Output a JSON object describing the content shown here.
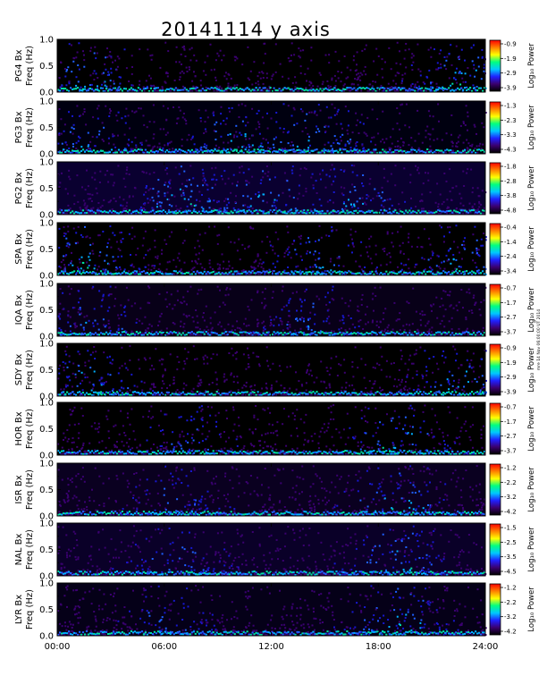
{
  "chart_data": {
    "type": "heatmap",
    "title": "20141114 y axis",
    "xlim_hours": [
      0,
      24
    ],
    "x_tick_labels": [
      "00:00",
      "06:00",
      "12:00",
      "18:00",
      "24:00"
    ],
    "freq_ylim_hz": [
      0,
      1.0
    ],
    "freq_tick_labels": [
      "0.0",
      "0.5",
      "1.0"
    ],
    "colorbar_label": "Log₁₀ Power",
    "colormap": [
      "#000000",
      "#3a006e",
      "#2020ff",
      "#00c8ff",
      "#00ff80",
      "#ffff00",
      "#ff8000",
      "#ff0000"
    ],
    "side_stamp": "mre 14 Nov 06:00:00 UT 2014",
    "panels": [
      {
        "station": "PG4",
        "ylabel_top": "PG4 Bx",
        "ylabel_bottom": "Freq (Hz)",
        "cbar_ticks": [
          "-0.9",
          "-1.9",
          "-2.9",
          "-3.9"
        ],
        "log_power_range": [
          -3.9,
          -0.9
        ]
      },
      {
        "station": "PG3",
        "ylabel_top": "PG3 Bx",
        "ylabel_bottom": "Freq (Hz)",
        "cbar_ticks": [
          "-1.3",
          "-2.3",
          "-3.3",
          "-4.3"
        ],
        "log_power_range": [
          -4.3,
          -1.3
        ]
      },
      {
        "station": "PG2",
        "ylabel_top": "PG2 Bx",
        "ylabel_bottom": "Freq (Hz)",
        "cbar_ticks": [
          "-1.8",
          "-2.8",
          "-3.8",
          "-4.8"
        ],
        "log_power_range": [
          -4.8,
          -1.8
        ]
      },
      {
        "station": "SPA",
        "ylabel_top": "SPA Bx",
        "ylabel_bottom": "Freq (Hz)",
        "cbar_ticks": [
          "-0.4",
          "-1.4",
          "-2.4",
          "-3.4"
        ],
        "log_power_range": [
          -3.4,
          -0.4
        ]
      },
      {
        "station": "IQA",
        "ylabel_top": "IQA Bx",
        "ylabel_bottom": "Freq (Hz)",
        "cbar_ticks": [
          "-0.7",
          "-1.7",
          "-2.7",
          "-3.7"
        ],
        "log_power_range": [
          -3.7,
          -0.7
        ]
      },
      {
        "station": "SDY",
        "ylabel_top": "SDY Bx",
        "ylabel_bottom": "Freq (Hz)",
        "cbar_ticks": [
          "-0.9",
          "-1.9",
          "-2.9",
          "-3.9"
        ],
        "log_power_range": [
          -3.9,
          -0.9
        ]
      },
      {
        "station": "HOR",
        "ylabel_top": "HOR Bx",
        "ylabel_bottom": "Freq (Hz)",
        "cbar_ticks": [
          "-0.7",
          "-1.7",
          "-2.7",
          "-3.7"
        ],
        "log_power_range": [
          -3.7,
          -0.7
        ]
      },
      {
        "station": "ISR",
        "ylabel_top": "ISR Bx",
        "ylabel_bottom": "Freq (Hz)",
        "cbar_ticks": [
          "-1.2",
          "-2.2",
          "-3.2",
          "-4.2"
        ],
        "log_power_range": [
          -4.2,
          -1.2
        ]
      },
      {
        "station": "NAL",
        "ylabel_top": "NAL Bx",
        "ylabel_bottom": "Freq (Hz)",
        "cbar_ticks": [
          "-1.5",
          "-2.5",
          "-3.5",
          "-4.5"
        ],
        "log_power_range": [
          -4.5,
          -1.5
        ]
      },
      {
        "station": "LYR",
        "ylabel_top": "LYR Bx",
        "ylabel_bottom": "Freq (Hz)",
        "cbar_ticks": [
          "-1.2",
          "-2.2",
          "-3.2",
          "-4.2"
        ],
        "log_power_range": [
          -4.2,
          -1.2
        ]
      }
    ]
  }
}
